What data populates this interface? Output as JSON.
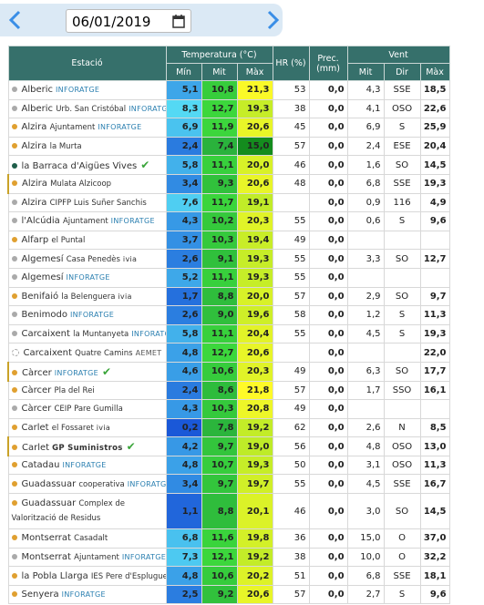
{
  "header": {
    "date": "06/01/2019"
  },
  "table": {
    "columns": {
      "station": "Estació",
      "temperature": "Temperatura (°C)",
      "humidity": "HR (%)",
      "precipitation": "Prec. (mm)",
      "wind": "Vent"
    },
    "subcolumns": [
      "Mín",
      "Mit",
      "Màx",
      "Mit",
      "Dir",
      "Màx"
    ],
    "rows": [
      {
        "name": "Alberic",
        "sub": null,
        "provider": "INFORATGE",
        "cells": [
          "5,1",
          "10,8",
          "21,3",
          "53",
          "0,0",
          "4,3",
          "SSE",
          "18,5"
        ]
      },
      {
        "name": "Alberic",
        "sub": "Urb. San Cristóbal",
        "provider": "INFORATGE",
        "cells": [
          "8,3",
          "12,7",
          "19,3",
          "38",
          "0,0",
          "4,1",
          "OSO",
          "22,6"
        ]
      },
      {
        "name": "Alzira",
        "sub": "Ajuntament",
        "provider": "INFORATGE",
        "cells": [
          "6,9",
          "11,9",
          "20,6",
          "45",
          "0,0",
          "6,9",
          "S",
          "25,9"
        ]
      },
      {
        "name": "Alzira",
        "sub": "la Murta",
        "provider": null,
        "cells": [
          "2,4",
          "7,4",
          "15,0",
          "57",
          "0,0",
          "2,4",
          "ESE",
          "20,4"
        ]
      },
      {
        "name": "la Barraca d'Aigües Vives",
        "sub": null,
        "provider": null,
        "cells": [
          "5,8",
          "11,1",
          "20,0",
          "46",
          "0,0",
          "1,6",
          "SO",
          "14,5"
        ]
      },
      {
        "name": "Alzira",
        "sub": "Mulata Alzicoop",
        "provider": null,
        "cells": [
          "3,4",
          "9,3",
          "20,6",
          "48",
          "0,0",
          "6,8",
          "SSE",
          "19,3"
        ]
      },
      {
        "name": "Alzira",
        "sub": "CIPFP Luis Suñer Sanchis",
        "provider": null,
        "cells": [
          "7,6",
          "11,7",
          "19,1",
          null,
          "0,0",
          "0,9",
          "116",
          "4,9"
        ]
      },
      {
        "name": "l'Alcúdia",
        "sub": "Ajuntament",
        "provider": "INFORATGE",
        "cells": [
          "4,3",
          "10,2",
          "20,3",
          "55",
          "0,0",
          "0,6",
          "S",
          "9,6"
        ]
      },
      {
        "name": "Alfarp",
        "sub": "el Puntal",
        "provider": null,
        "cells": [
          "3,7",
          "10,3",
          "19,4",
          "49",
          "0,0",
          null,
          null,
          null
        ]
      },
      {
        "name": "Algemesí",
        "sub": "Casa Penedès",
        "provider": "ivia",
        "cells": [
          "2,6",
          "9,1",
          "19,3",
          "55",
          "0,0",
          "3,3",
          "SO",
          "12,7"
        ]
      },
      {
        "name": "Algemesí",
        "sub": null,
        "provider": "INFORATGE",
        "cells": [
          "5,2",
          "11,1",
          "19,3",
          "55",
          "0,0",
          null,
          null,
          null
        ]
      },
      {
        "name": "Benifaió",
        "sub": "la Belenguera",
        "provider": "ivia",
        "cells": [
          "1,7",
          "8,8",
          "20,0",
          "57",
          "0,0",
          "2,9",
          "SO",
          "9,7"
        ]
      },
      {
        "name": "Benimodo",
        "sub": null,
        "provider": "INFORATGE",
        "cells": [
          "2,6",
          "9,0",
          "19,6",
          "58",
          "0,0",
          "1,2",
          "S",
          "11,3"
        ]
      },
      {
        "name": "Carcaixent",
        "sub": "la Muntanyeta",
        "provider": "INFORATGE",
        "cells": [
          "5,8",
          "11,1",
          "20,4",
          "55",
          "0,0",
          "4,5",
          "S",
          "19,3"
        ]
      },
      {
        "name": "Carcaixent",
        "sub": "Quatre Camins",
        "provider": "AEMET",
        "cells": [
          "4,8",
          "12,7",
          "20,6",
          null,
          "0,0",
          null,
          null,
          "22,0"
        ]
      },
      {
        "name": "Càrcer",
        "sub": null,
        "provider": "INFORATGE",
        "cells": [
          "4,6",
          "10,6",
          "20,3",
          "49",
          "0,0",
          "6,3",
          "SO",
          "17,7"
        ]
      },
      {
        "name": "Càrcer",
        "sub": "Pla del Rei",
        "provider": null,
        "cells": [
          "2,4",
          "8,6",
          "21,8",
          "57",
          "0,0",
          "1,7",
          "SSO",
          "16,1"
        ]
      },
      {
        "name": "Càrcer",
        "sub": "CEIP Pare Gumilla",
        "provider": null,
        "cells": [
          "4,3",
          "10,3",
          "20,8",
          "49",
          "0,0",
          null,
          null,
          null
        ]
      },
      {
        "name": "Carlet",
        "sub": "el Fossaret",
        "provider": "ivia",
        "cells": [
          "0,2",
          "7,8",
          "19,2",
          "62",
          "0,0",
          "2,6",
          "N",
          "8,5"
        ]
      },
      {
        "name": "Carlet",
        "sub": null,
        "provider": "GP Suministros",
        "cells": [
          "4,2",
          "9,7",
          "19,0",
          "56",
          "0,0",
          "4,8",
          "OSO",
          "13,0"
        ]
      },
      {
        "name": "Catadau",
        "sub": null,
        "provider": "INFORATGE",
        "cells": [
          "4,8",
          "10,7",
          "19,3",
          "50",
          "0,0",
          "3,1",
          "OSO",
          "11,3"
        ]
      },
      {
        "name": "Guadassuar",
        "sub": "cooperativa",
        "provider": "INFORATGE",
        "cells": [
          "3,4",
          "9,7",
          "19,7",
          "55",
          "0,0",
          "4,5",
          "SSE",
          "16,7"
        ]
      },
      {
        "name": "Guadassuar",
        "sub": "Complex de Valorització de Residus",
        "provider": null,
        "cells": [
          "1,1",
          "8,8",
          "20,1",
          "46",
          "0,0",
          "3,0",
          "SO",
          "14,5"
        ]
      },
      {
        "name": "Montserrat",
        "sub": "Casadalt",
        "provider": null,
        "cells": [
          "6,8",
          "11,6",
          "19,8",
          "36",
          "0,0",
          "15,0",
          "O",
          "37,0"
        ]
      },
      {
        "name": "Montserrat",
        "sub": "Ajuntament",
        "provider": "INFORATGE",
        "cells": [
          "7,3",
          "12,1",
          "19,2",
          "38",
          "0,0",
          "10,0",
          "O",
          "32,2"
        ]
      },
      {
        "name": "la Pobla Llarga",
        "sub": "IES Pere d'Esplugues",
        "provider": null,
        "cells": [
          "4,8",
          "10,6",
          "20,2",
          "51",
          "0,0",
          "6,8",
          "SSE",
          "18,1"
        ]
      },
      {
        "name": "Senyera",
        "sub": null,
        "provider": "INFORATGE",
        "cells": [
          "2,5",
          "9,2",
          "20,6",
          "57",
          "0,0",
          "2,7",
          "S",
          "9,6"
        ]
      }
    ]
  }
}
